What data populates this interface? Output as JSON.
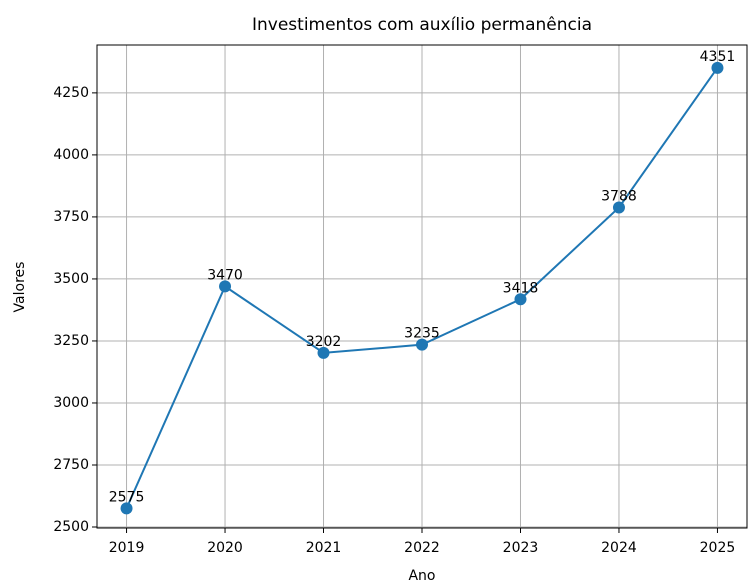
{
  "chart_data": {
    "type": "line",
    "title": "Investimentos com auxílio permanência",
    "xlabel": "Ano",
    "ylabel": "Valores",
    "x": [
      2019,
      2020,
      2021,
      2022,
      2023,
      2024,
      2025
    ],
    "series": [
      {
        "name": "Valores",
        "color": "#1f77b4",
        "values": [
          2575,
          3470,
          3202,
          3235,
          3418,
          3788,
          4351
        ]
      }
    ],
    "xlim": [
      2018.7,
      2025.3
    ],
    "xticks": [
      2019,
      2020,
      2021,
      2022,
      2023,
      2024,
      2025
    ],
    "ylim": [
      2496,
      4443
    ],
    "yticks": [
      2500,
      2750,
      3000,
      3250,
      3500,
      3750,
      4000,
      4250
    ],
    "grid": true
  }
}
